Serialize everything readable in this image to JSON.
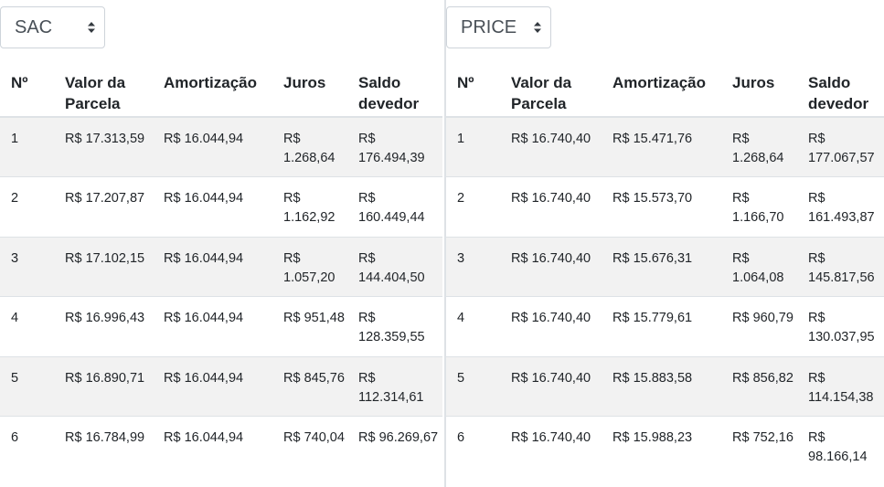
{
  "left": {
    "select": {
      "value": "SAC"
    },
    "headers": [
      "Nº",
      "Valor da Parcela",
      "Amortização",
      "Juros",
      "Saldo devedor"
    ],
    "rows": [
      [
        "1",
        "R$ 17.313,59",
        "R$ 16.044,94",
        "R$ 1.268,64",
        "R$ 176.494,39"
      ],
      [
        "2",
        "R$ 17.207,87",
        "R$ 16.044,94",
        "R$ 1.162,92",
        "R$ 160.449,44"
      ],
      [
        "3",
        "R$ 17.102,15",
        "R$ 16.044,94",
        "R$ 1.057,20",
        "R$ 144.404,50"
      ],
      [
        "4",
        "R$ 16.996,43",
        "R$ 16.044,94",
        "R$ 951,48",
        "R$ 128.359,55"
      ],
      [
        "5",
        "R$ 16.890,71",
        "R$ 16.044,94",
        "R$ 845,76",
        "R$ 112.314,61"
      ],
      [
        "6",
        "R$ 16.784,99",
        "R$ 16.044,94",
        "R$ 740,04",
        "R$ 96.269,67"
      ]
    ]
  },
  "right": {
    "select": {
      "value": "PRICE"
    },
    "headers": [
      "Nº",
      "Valor da Parcela",
      "Amortização",
      "Juros",
      "Saldo devedor"
    ],
    "rows": [
      [
        "1",
        "R$ 16.740,40",
        "R$ 15.471,76",
        "R$ 1.268,64",
        "R$ 177.067,57"
      ],
      [
        "2",
        "R$ 16.740,40",
        "R$ 15.573,70",
        "R$ 1.166,70",
        "R$ 161.493,87"
      ],
      [
        "3",
        "R$ 16.740,40",
        "R$ 15.676,31",
        "R$ 1.064,08",
        "R$ 145.817,56"
      ],
      [
        "4",
        "R$ 16.740,40",
        "R$ 15.779,61",
        "R$ 960,79",
        "R$ 130.037,95"
      ],
      [
        "5",
        "R$ 16.740,40",
        "R$ 15.883,58",
        "R$ 856,82",
        "R$ 114.154,38"
      ],
      [
        "6",
        "R$ 16.740,40",
        "R$ 15.988,23",
        "R$ 752,16",
        "R$ 98.166,14"
      ]
    ]
  }
}
